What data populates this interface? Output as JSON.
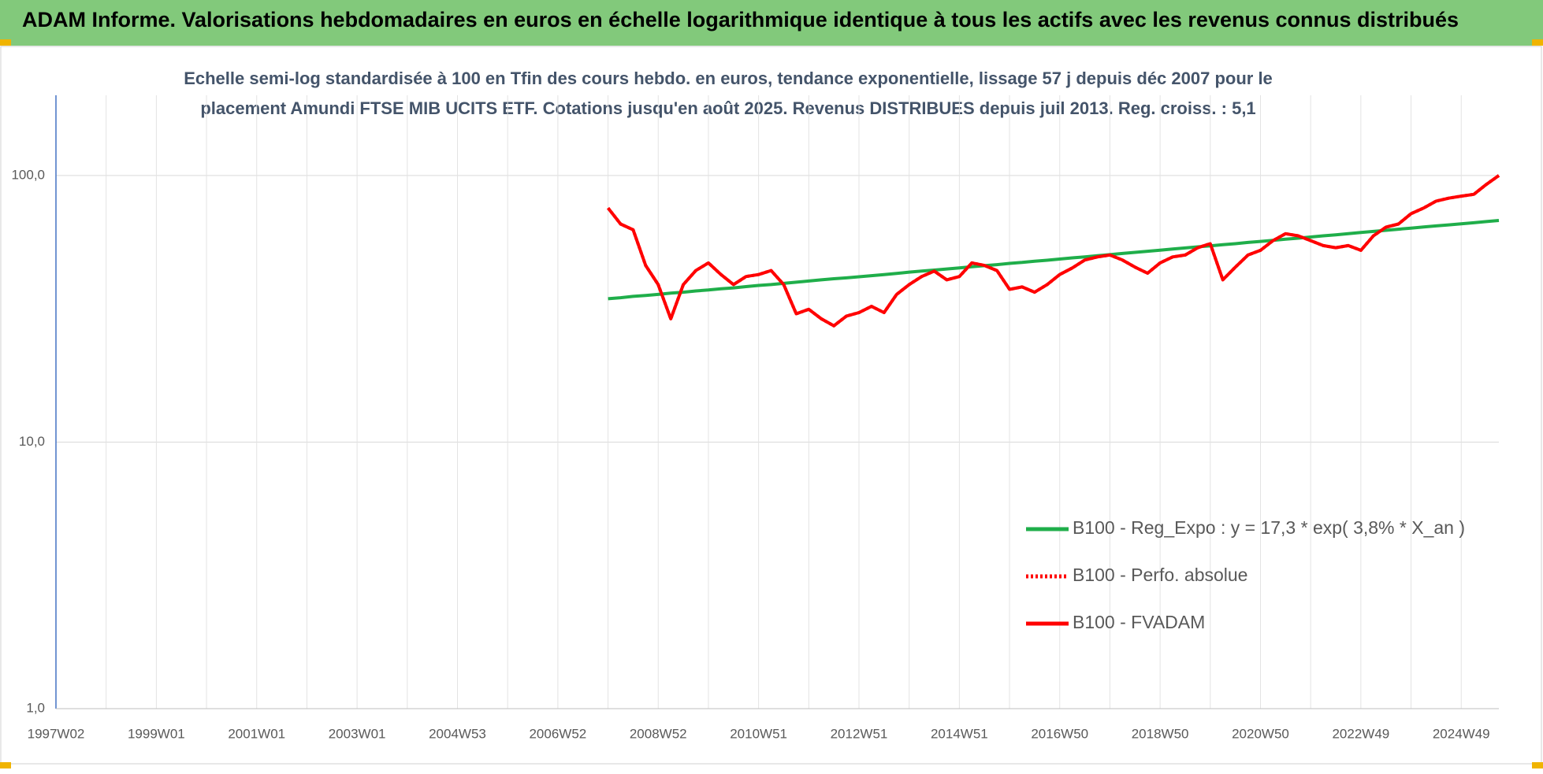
{
  "header": {
    "title": "ADAM Informe. Valorisations hebdomadaires en euros en échelle logarithmique identique à tous les actifs avec les revenus connus distribués"
  },
  "chart_data": {
    "type": "line",
    "subtitle": [
      "Echelle semi-log standardisée à 100 en Tfin des cours hebdo. en euros, tendance exponentielle, lissage 57 j depuis déc 2007 pour le",
      "placement Amundi FTSE MIB UCITS ETF. Cotations jusqu'en août 2025. Revenus DISTRIBUES depuis juil 2013. Reg. croiss. : 5,1"
    ],
    "categories": [
      "1997W02",
      null,
      null,
      null,
      null,
      null,
      null,
      null,
      "1999W01",
      null,
      null,
      null,
      null,
      null,
      null,
      null,
      "2001W01",
      null,
      null,
      null,
      null,
      null,
      null,
      null,
      "2003W01",
      null,
      null,
      null,
      null,
      null,
      null,
      null,
      "2004W53",
      null,
      null,
      null,
      null,
      null,
      null,
      null,
      "2006W52",
      null,
      null,
      null,
      null,
      null,
      null,
      null,
      "2008W52",
      null,
      null,
      null,
      null,
      null,
      null,
      null,
      "2010W51",
      null,
      null,
      null,
      null,
      null,
      null,
      null,
      "2012W51",
      null,
      null,
      null,
      null,
      null,
      null,
      null,
      "2014W51",
      null,
      null,
      null,
      null,
      null,
      null,
      null,
      "2016W50",
      null,
      null,
      null,
      null,
      null,
      null,
      null,
      "2018W50",
      null,
      null,
      null,
      null,
      null,
      null,
      null,
      "2020W50",
      null,
      null,
      null,
      null,
      null,
      null,
      null,
      "2022W49",
      null,
      null,
      null,
      null,
      null,
      null,
      null,
      "2024W49",
      null,
      null,
      null
    ],
    "series": [
      {
        "name": "B100 - Reg_Expo : y = 17,3 * exp( 3,8% *  X_an )",
        "color": "#1fae4a",
        "dash": "solid",
        "values": [
          null,
          null,
          null,
          null,
          null,
          null,
          null,
          null,
          null,
          null,
          null,
          null,
          null,
          null,
          null,
          null,
          null,
          null,
          null,
          null,
          null,
          null,
          null,
          null,
          null,
          null,
          null,
          null,
          null,
          null,
          null,
          null,
          null,
          null,
          null,
          null,
          null,
          null,
          null,
          null,
          null,
          null,
          null,
          null,
          34.5,
          34.8,
          35.2,
          35.5,
          35.8,
          36.2,
          36.5,
          36.9,
          37.2,
          37.6,
          37.9,
          38.3,
          38.7,
          39.0,
          39.4,
          39.8,
          40.2,
          40.6,
          41.0,
          41.3,
          41.7,
          42.1,
          42.5,
          42.9,
          43.4,
          43.8,
          44.2,
          44.6,
          45.0,
          45.5,
          45.9,
          46.3,
          46.8,
          47.2,
          47.7,
          48.1,
          48.6,
          49.1,
          49.5,
          50.0,
          50.5,
          51.0,
          51.5,
          52.0,
          52.5,
          53.0,
          53.5,
          54.0,
          54.5,
          55.0,
          55.5,
          56.1,
          56.6,
          57.1,
          57.7,
          58.2,
          58.8,
          59.4,
          59.9,
          60.5,
          61.1,
          61.7,
          62.3,
          62.9,
          63.5,
          64.1,
          64.7,
          65.3,
          65.9,
          66.5,
          67.2,
          67.8
        ]
      },
      {
        "name": "B100 - Perfo. absolue",
        "color": "#ff0000",
        "dash": "dotted",
        "values": [
          null,
          null,
          null,
          null,
          null,
          null,
          null,
          null,
          null,
          null,
          null,
          null,
          null,
          null,
          null,
          null,
          null,
          null,
          null,
          null,
          null,
          null,
          null,
          null,
          null,
          null,
          null,
          null,
          null,
          null,
          null,
          null,
          null,
          null,
          null,
          null,
          null,
          null,
          null,
          null,
          null,
          null,
          null,
          null,
          75.5,
          65.8,
          62.6,
          46,
          39,
          29,
          39,
          44,
          47,
          42.5,
          39,
          41.8,
          42.5,
          44,
          39,
          30.3,
          31.5,
          29,
          27.3,
          29.7,
          30.6,
          32.3,
          30.6,
          35.8,
          39,
          41.8,
          43.8,
          40.6,
          41.8,
          47,
          46,
          44,
          37.4,
          38.2,
          36.5,
          39,
          42.5,
          45,
          48.2,
          49.5,
          50.3,
          48.2,
          45.3,
          43,
          47,
          49.5,
          50.3,
          53.6,
          55.5,
          40.6,
          45.3,
          50.3,
          52.4,
          57,
          60.5,
          59.4,
          57,
          54.6,
          53.6,
          54.6,
          52.4,
          59.4,
          64,
          65.8,
          71.9,
          75.5,
          80.2,
          82.2,
          83.7,
          85,
          92.6,
          100
        ]
      },
      {
        "name": "B100 - FVADAM",
        "color": "#ff0000",
        "dash": "solid",
        "values": [
          null,
          null,
          null,
          null,
          null,
          null,
          null,
          null,
          null,
          null,
          null,
          null,
          null,
          null,
          null,
          null,
          null,
          null,
          null,
          null,
          null,
          null,
          null,
          null,
          null,
          null,
          null,
          null,
          null,
          null,
          null,
          null,
          null,
          null,
          null,
          null,
          null,
          null,
          null,
          null,
          null,
          null,
          null,
          null,
          75.5,
          65.8,
          62.6,
          46,
          39,
          29,
          39,
          44,
          47,
          42.5,
          39,
          41.8,
          42.5,
          44,
          39,
          30.3,
          31.5,
          29,
          27.3,
          29.7,
          30.6,
          32.3,
          30.6,
          35.8,
          39,
          41.8,
          43.8,
          40.6,
          41.8,
          47,
          46,
          44,
          37.4,
          38.2,
          36.5,
          39,
          42.5,
          45,
          48.2,
          49.5,
          50.3,
          48.2,
          45.3,
          43,
          47,
          49.5,
          50.3,
          53.6,
          55.5,
          40.6,
          45.3,
          50.3,
          52.4,
          57,
          60.5,
          59.4,
          57,
          54.6,
          53.6,
          54.6,
          52.4,
          59.4,
          64,
          65.8,
          71.9,
          75.5,
          80.2,
          82.2,
          83.7,
          85,
          92.6,
          100
        ]
      }
    ],
    "ylim": [
      1,
      200
    ],
    "yticks": [
      {
        "value": 1,
        "label": "1,0"
      },
      {
        "value": 10,
        "label": "10,0"
      },
      {
        "value": 100,
        "label": "100,0"
      }
    ],
    "log_y": true,
    "grid": true,
    "legend_position": "right"
  }
}
